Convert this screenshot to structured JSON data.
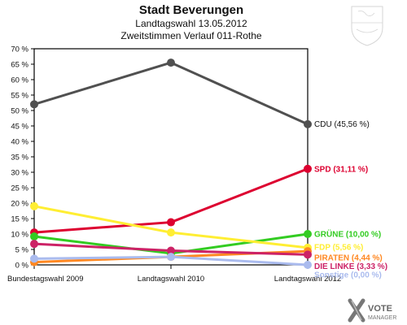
{
  "header": {
    "title": "Stadt Beverungen",
    "subtitle": "Landtagswahl 13.05.2012",
    "subtitle2": "Zweitstimmen Verlauf 011-Rothe"
  },
  "branding": {
    "logo_line1": "VOTE",
    "logo_line2": "MANAGER",
    "coat_of_arms": "nrw-coat-of-arms"
  },
  "chart_data": {
    "type": "line",
    "x": [
      "Bundestagswahl 2009",
      "Landtagswahl 2010",
      "Landtagswahl 2012"
    ],
    "ylim": [
      0,
      70
    ],
    "yticks": [
      "0 %",
      "5 %",
      "10 %",
      "15 %",
      "20 %",
      "25 %",
      "30 %",
      "35 %",
      "40 %",
      "45 %",
      "50 %",
      "55 %",
      "60 %",
      "65 %",
      "70 %"
    ],
    "grid": false,
    "series": [
      {
        "name": "CDU",
        "label": "CDU (45,56 %)",
        "color": "#505050",
        "values": [
          52.0,
          65.5,
          45.56
        ]
      },
      {
        "name": "SPD",
        "label": "SPD (31,11 %)",
        "color": "#dd0030",
        "values": [
          10.5,
          13.8,
          31.11
        ]
      },
      {
        "name": "GRÜNE",
        "label": "GRÜNE (10,00 %)",
        "color": "#33cc22",
        "values": [
          9.2,
          3.7,
          10.0
        ]
      },
      {
        "name": "FDP",
        "label": "FDP (5,56 %)",
        "color": "#ffee33",
        "values": [
          19.0,
          10.5,
          5.56
        ]
      },
      {
        "name": "PIRATEN",
        "label": "PIRATEN (4,44 %)",
        "color": "#ff8822",
        "values": [
          0.9,
          2.6,
          4.44
        ]
      },
      {
        "name": "DIE LINKE",
        "label": "DIE LINKE (3,33 %)",
        "color": "#cc2266",
        "values": [
          6.8,
          4.6,
          3.33
        ]
      },
      {
        "name": "Sonstige",
        "label": "Sonstige (0,00 %)",
        "color": "#aabbee",
        "values": [
          2.0,
          2.6,
          0.0
        ]
      }
    ]
  }
}
